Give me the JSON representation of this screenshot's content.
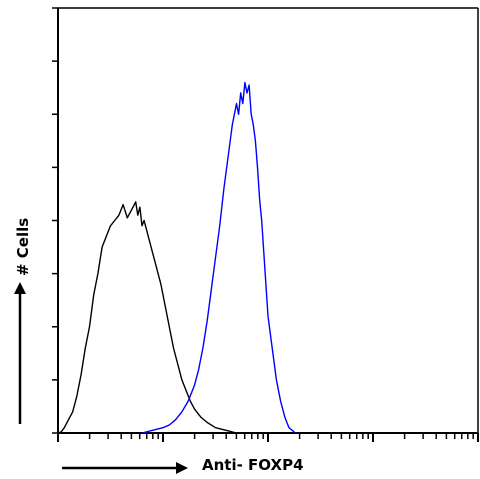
{
  "chart_data": {
    "type": "line",
    "title": "",
    "xlabel": "Anti- FOXP4",
    "ylabel": "# Cells",
    "x_scale": "log",
    "x_decades": 4,
    "ylim": [
      0,
      8
    ],
    "y_major_ticks": 8,
    "grid": false,
    "legend": "none",
    "series": [
      {
        "color": "#000000",
        "points": [
          [
            0.0,
            0.0
          ],
          [
            0.03,
            0.02
          ],
          [
            0.06,
            0.1
          ],
          [
            0.1,
            0.25
          ],
          [
            0.14,
            0.4
          ],
          [
            0.18,
            0.7
          ],
          [
            0.22,
            1.1
          ],
          [
            0.26,
            1.6
          ],
          [
            0.3,
            2.0
          ],
          [
            0.34,
            2.6
          ],
          [
            0.38,
            3.0
          ],
          [
            0.42,
            3.5
          ],
          [
            0.46,
            3.7
          ],
          [
            0.5,
            3.9
          ],
          [
            0.54,
            4.0
          ],
          [
            0.58,
            4.1
          ],
          [
            0.62,
            4.3
          ],
          [
            0.66,
            4.05
          ],
          [
            0.7,
            4.2
          ],
          [
            0.74,
            4.35
          ],
          [
            0.76,
            4.1
          ],
          [
            0.78,
            4.25
          ],
          [
            0.8,
            3.9
          ],
          [
            0.82,
            4.0
          ],
          [
            0.86,
            3.7
          ],
          [
            0.9,
            3.4
          ],
          [
            0.94,
            3.1
          ],
          [
            0.98,
            2.8
          ],
          [
            1.02,
            2.4
          ],
          [
            1.06,
            2.0
          ],
          [
            1.1,
            1.6
          ],
          [
            1.14,
            1.3
          ],
          [
            1.18,
            1.0
          ],
          [
            1.22,
            0.8
          ],
          [
            1.26,
            0.6
          ],
          [
            1.3,
            0.45
          ],
          [
            1.36,
            0.3
          ],
          [
            1.42,
            0.2
          ],
          [
            1.5,
            0.1
          ],
          [
            1.6,
            0.05
          ],
          [
            1.7,
            0.0
          ]
        ]
      },
      {
        "color": "#0000ff",
        "points": [
          [
            0.8,
            0.0
          ],
          [
            0.9,
            0.05
          ],
          [
            1.0,
            0.1
          ],
          [
            1.06,
            0.15
          ],
          [
            1.12,
            0.25
          ],
          [
            1.18,
            0.4
          ],
          [
            1.24,
            0.6
          ],
          [
            1.3,
            0.9
          ],
          [
            1.34,
            1.2
          ],
          [
            1.38,
            1.6
          ],
          [
            1.42,
            2.1
          ],
          [
            1.46,
            2.7
          ],
          [
            1.5,
            3.3
          ],
          [
            1.54,
            3.9
          ],
          [
            1.58,
            4.6
          ],
          [
            1.62,
            5.2
          ],
          [
            1.66,
            5.8
          ],
          [
            1.7,
            6.2
          ],
          [
            1.72,
            6.0
          ],
          [
            1.74,
            6.4
          ],
          [
            1.76,
            6.2
          ],
          [
            1.78,
            6.6
          ],
          [
            1.8,
            6.4
          ],
          [
            1.82,
            6.55
          ],
          [
            1.84,
            6.0
          ],
          [
            1.86,
            5.8
          ],
          [
            1.88,
            5.5
          ],
          [
            1.9,
            5.0
          ],
          [
            1.92,
            4.4
          ],
          [
            1.94,
            4.0
          ],
          [
            1.96,
            3.4
          ],
          [
            1.98,
            2.8
          ],
          [
            2.0,
            2.2
          ],
          [
            2.04,
            1.6
          ],
          [
            2.08,
            1.0
          ],
          [
            2.12,
            0.6
          ],
          [
            2.16,
            0.3
          ],
          [
            2.2,
            0.1
          ],
          [
            2.26,
            0.0
          ]
        ]
      }
    ]
  }
}
